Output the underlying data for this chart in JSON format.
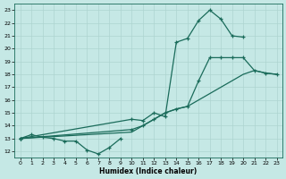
{
  "xlabel": "Humidex (Indice chaleur)",
  "bg_color": "#c5e8e5",
  "grid_color": "#aed4d0",
  "line_color": "#1a6b5a",
  "xlim": [
    -0.5,
    23.5
  ],
  "ylim": [
    11.5,
    23.5
  ],
  "yticks": [
    12,
    13,
    14,
    15,
    16,
    17,
    18,
    19,
    20,
    21,
    22,
    23
  ],
  "xticks": [
    0,
    1,
    2,
    3,
    4,
    5,
    6,
    7,
    8,
    9,
    10,
    11,
    12,
    13,
    14,
    15,
    16,
    17,
    18,
    19,
    20,
    21,
    22,
    23
  ],
  "s1x": [
    0,
    1,
    2,
    3,
    4,
    5,
    6,
    7,
    8,
    9
  ],
  "s1y": [
    13,
    13.3,
    13.1,
    13.0,
    12.8,
    12.8,
    12.1,
    11.8,
    12.3,
    13.0
  ],
  "s2x": [
    0,
    10,
    11,
    12,
    13,
    14,
    15,
    16,
    17,
    18,
    19,
    20
  ],
  "s2y": [
    13,
    14.5,
    14.4,
    15.0,
    14.7,
    20.5,
    20.8,
    22.2,
    23.0,
    22.3,
    21.0,
    20.9
  ],
  "s3x": [
    0,
    10,
    11,
    12,
    13,
    14,
    15,
    16,
    17,
    18,
    19,
    20,
    21,
    22,
    23
  ],
  "s3y": [
    13,
    13.7,
    14.0,
    14.5,
    15.0,
    15.3,
    15.5,
    17.5,
    19.3,
    19.3,
    19.3,
    19.3,
    18.3,
    18.1,
    18.0
  ],
  "s4x": [
    0,
    10,
    11,
    12,
    13,
    14,
    15,
    16,
    17,
    18,
    19,
    20,
    21,
    22,
    23
  ],
  "s4y": [
    13,
    13.5,
    14.0,
    14.5,
    15.0,
    15.3,
    15.5,
    16.0,
    16.5,
    17.0,
    17.5,
    18.0,
    18.3,
    18.1,
    18.0
  ]
}
